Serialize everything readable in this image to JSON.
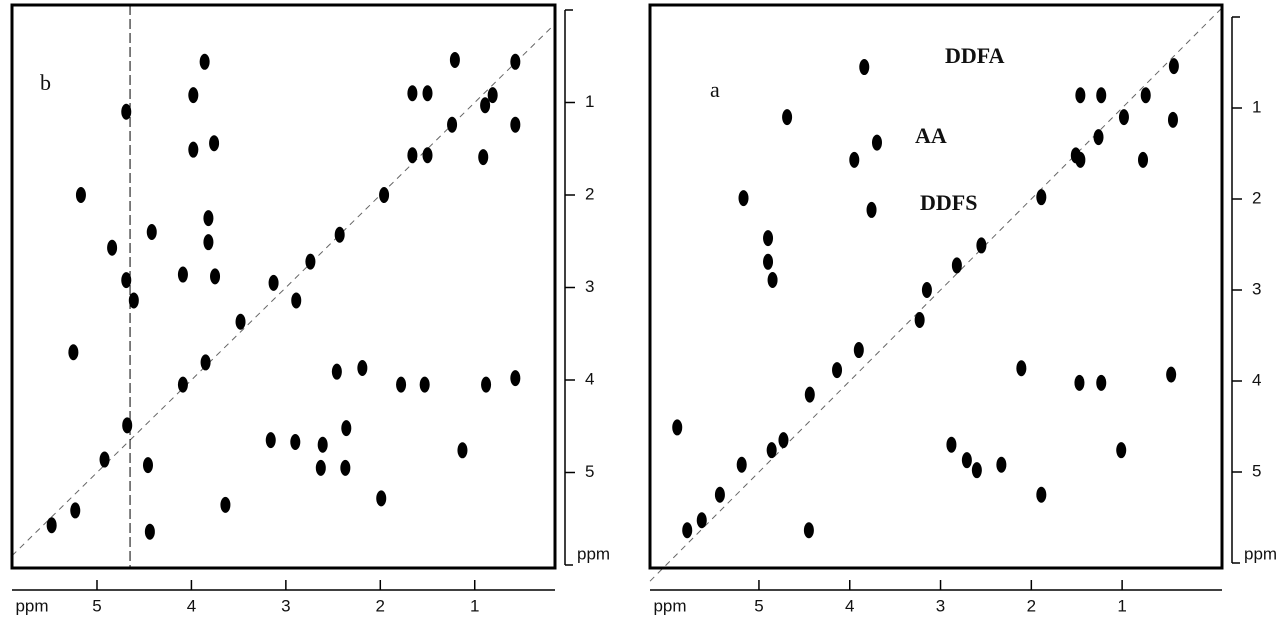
{
  "chart_data": [
    {
      "type": "scatter",
      "label": "b",
      "color": "#000000",
      "x_label": "ppm",
      "y_label": "ppm",
      "xlim": [
        5.9,
        0.15
      ],
      "ylim": [
        0,
        6
      ],
      "xticks": [
        5,
        4,
        3,
        2,
        1
      ],
      "yticks": [
        1,
        2,
        3,
        4,
        5
      ],
      "annotations": [],
      "x": [
        0.57,
        0.81,
        0.89,
        1.24,
        1.66,
        1.5,
        1.66,
        1.5,
        0.91,
        0.57,
        1.21,
        1.96,
        2.43,
        2.74,
        3.13,
        3.48,
        3.85,
        4.09,
        4.68,
        5.48,
        5.23,
        4.92,
        5.17,
        4.69,
        3.86,
        3.98,
        3.98,
        3.76,
        3.82,
        3.82,
        4.84,
        4.42,
        4.69,
        4.61,
        4.09,
        3.75,
        2.89,
        5.25,
        2.46,
        2.19,
        1.78,
        1.53,
        0.88,
        0.57,
        2.9,
        2.61,
        2.63,
        2.37,
        2.36,
        3.16,
        1.13,
        1.99,
        3.64,
        4.44,
        4.46
      ],
      "y": [
        0.56,
        0.92,
        1.03,
        1.24,
        0.9,
        0.9,
        1.57,
        1.57,
        1.59,
        1.24,
        0.54,
        2.0,
        2.43,
        2.72,
        2.95,
        3.37,
        3.81,
        4.05,
        4.49,
        5.57,
        5.41,
        4.86,
        2.0,
        1.1,
        0.56,
        0.92,
        1.51,
        1.44,
        2.25,
        2.51,
        2.57,
        2.4,
        2.92,
        3.14,
        2.86,
        2.88,
        3.14,
        3.7,
        3.91,
        3.87,
        4.05,
        4.05,
        4.05,
        3.98,
        4.67,
        4.7,
        4.95,
        4.95,
        4.52,
        4.65,
        4.76,
        5.28,
        5.35,
        5.64,
        4.92
      ]
    },
    {
      "type": "scatter",
      "label": "a",
      "color": "#000000",
      "x_label": "ppm",
      "y_label": "ppm",
      "xlim": [
        6.2,
        -0.1
      ],
      "ylim": [
        0,
        6
      ],
      "xticks": [
        5,
        4,
        3,
        2,
        1
      ],
      "yticks": [
        1,
        2,
        3,
        4,
        5
      ],
      "annotations": [
        "DDFA",
        "AA",
        "DDFS"
      ],
      "x": [
        0.43,
        0.74,
        0.98,
        1.26,
        1.51,
        1.89,
        2.55,
        2.82,
        3.15,
        3.23,
        3.9,
        4.14,
        4.44,
        4.73,
        4.86,
        5.19,
        5.43,
        5.63,
        5.79,
        3.84,
        4.69,
        5.17,
        4.9,
        4.9,
        4.85,
        3.95,
        1.46,
        1.23,
        1.46,
        0.77,
        0.44,
        1.01,
        2.88,
        2.71,
        2.6,
        2.33,
        1.23,
        1.47,
        0.46,
        1.89,
        2.11,
        5.9,
        4.45,
        3.76,
        3.7
      ],
      "y": [
        0.54,
        0.86,
        1.1,
        1.32,
        1.52,
        1.98,
        2.51,
        2.73,
        3.0,
        3.33,
        3.66,
        3.88,
        4.15,
        4.65,
        4.76,
        4.92,
        5.25,
        5.53,
        5.64,
        0.55,
        1.1,
        1.99,
        2.43,
        2.69,
        2.89,
        1.57,
        0.86,
        0.86,
        1.57,
        1.57,
        1.13,
        4.76,
        4.7,
        4.87,
        4.98,
        4.92,
        4.02,
        4.02,
        3.93,
        5.25,
        3.86,
        4.51,
        5.64,
        2.12,
        1.38
      ]
    }
  ]
}
